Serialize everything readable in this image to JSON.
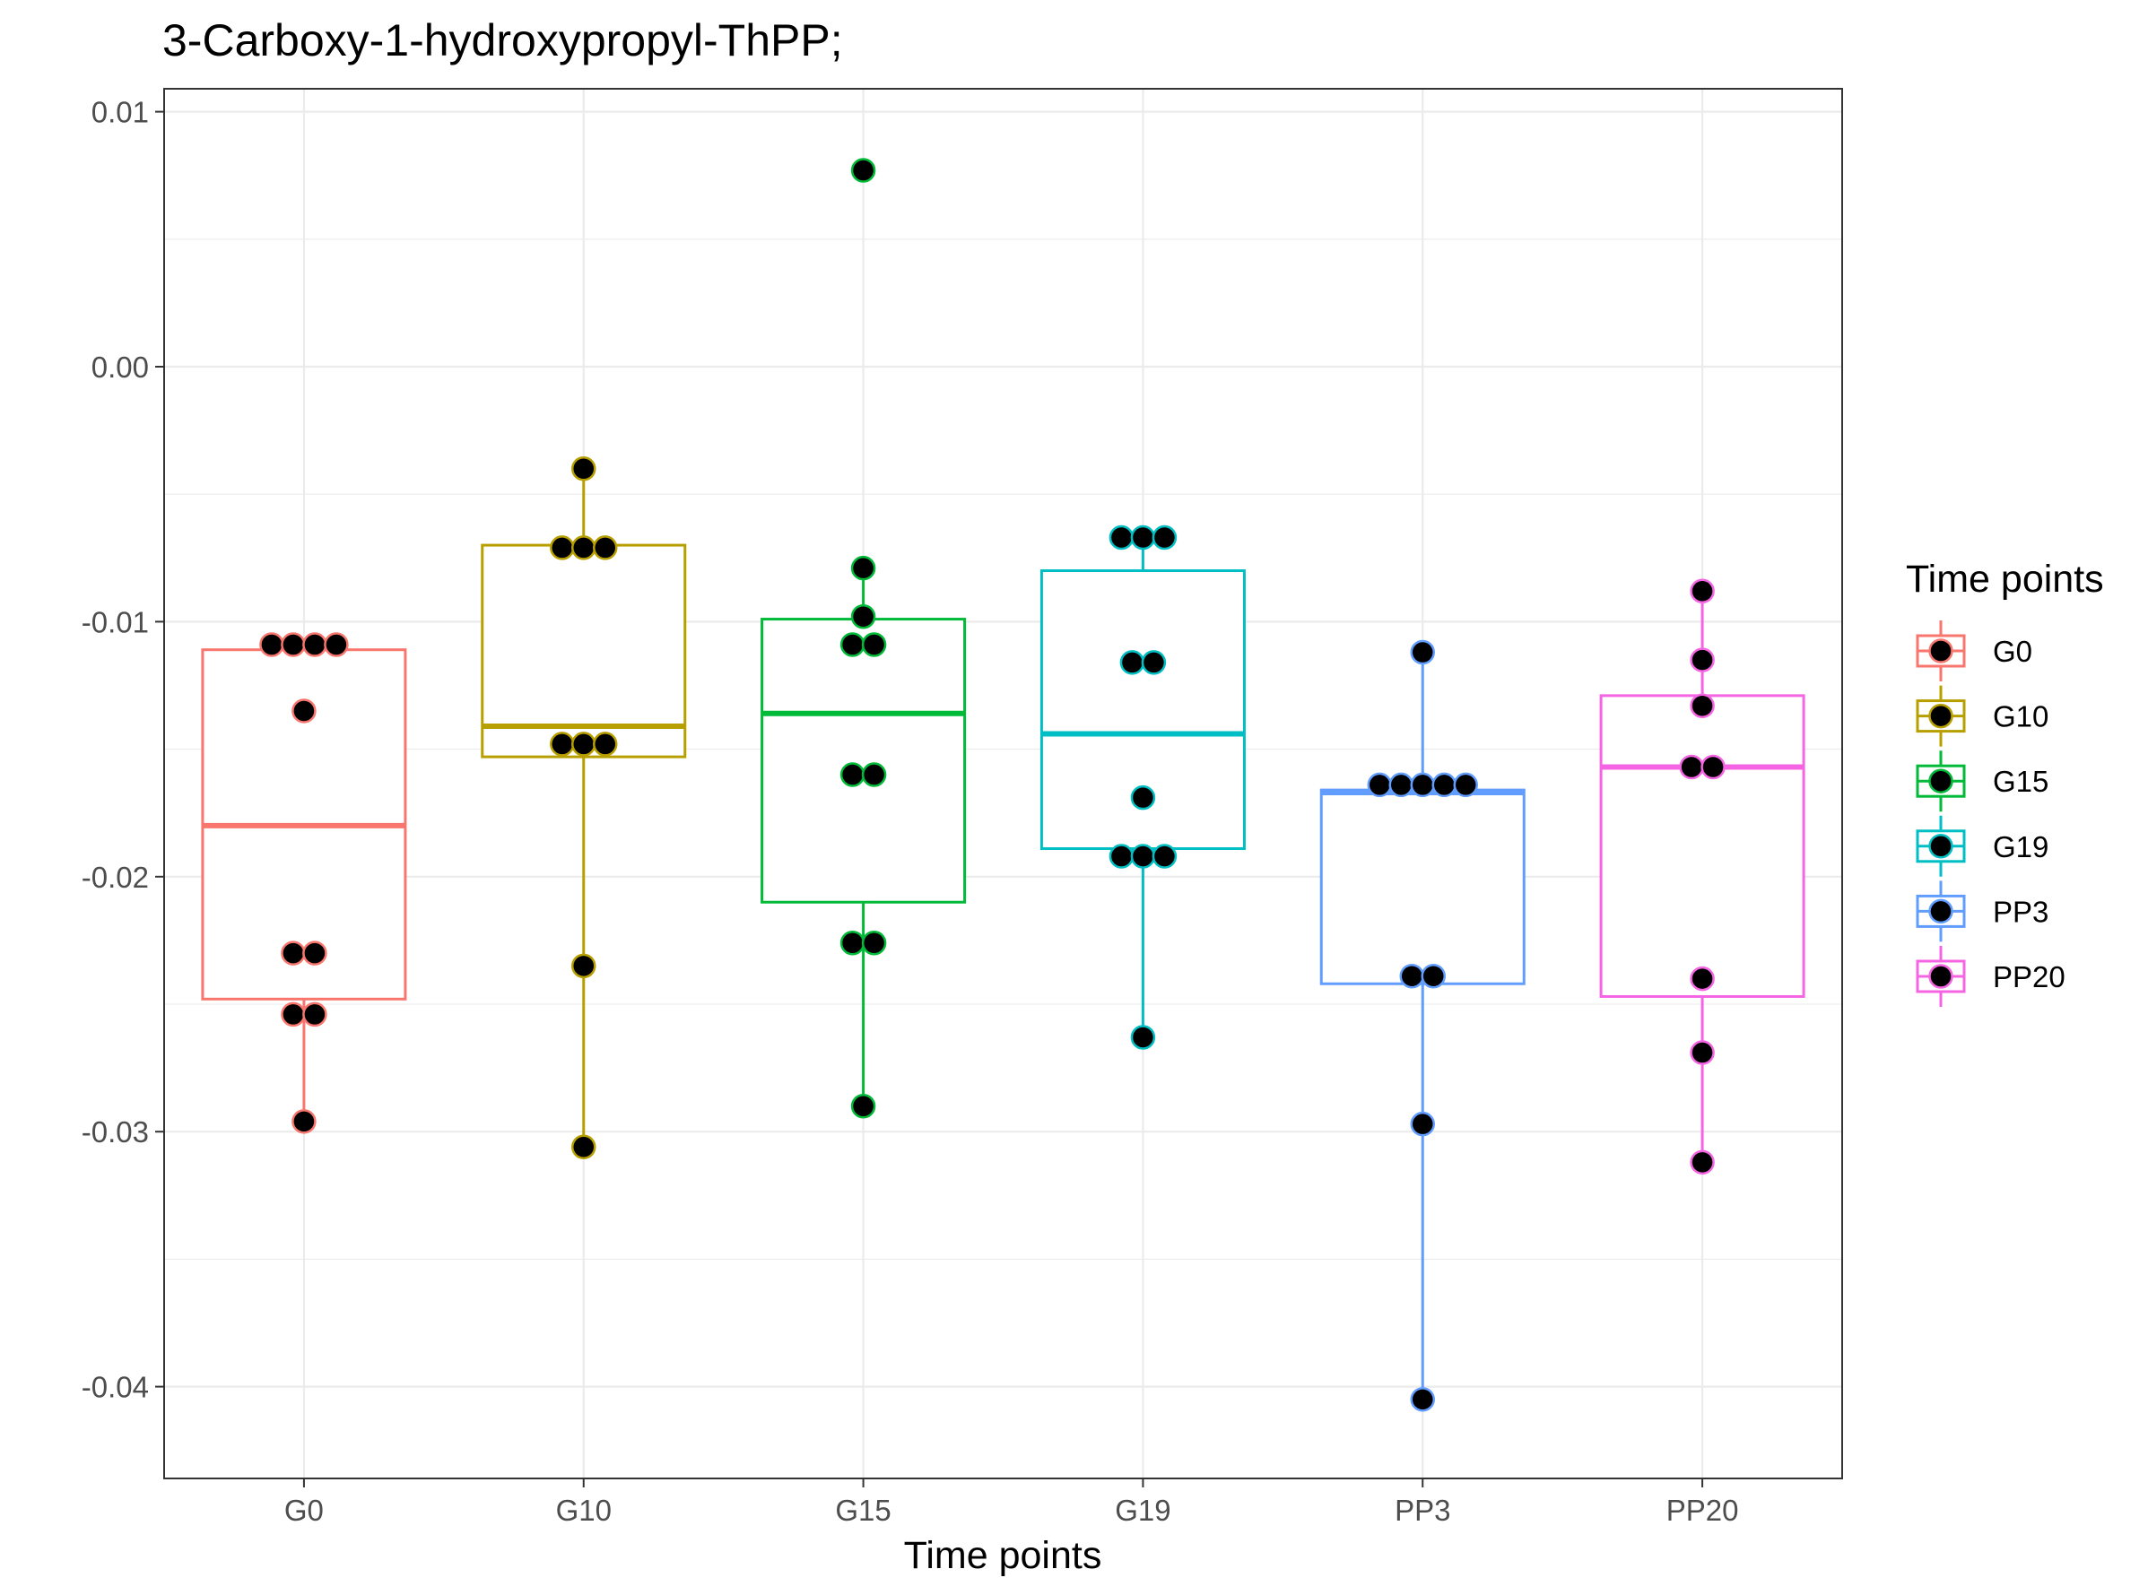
{
  "chart_data": {
    "type": "box",
    "title": "3-Carboxy-1-hydroxypropyl-ThPP;",
    "xlabel": "Time points",
    "ylabel": "",
    "ylim": [
      -0.0436,
      0.0109
    ],
    "y_ticks": [
      0.01,
      0.0,
      -0.01,
      -0.02,
      -0.03,
      -0.04
    ],
    "y_tick_labels": [
      "0.01",
      "0.00",
      "-0.01",
      "-0.02",
      "-0.03",
      "-0.04"
    ],
    "categories": [
      "G0",
      "G10",
      "G15",
      "G19",
      "PP3",
      "PP20"
    ],
    "grid": true,
    "legend": {
      "title": "Time points",
      "position": "right"
    },
    "series": [
      {
        "name": "G0",
        "color": "#F8766D",
        "box": {
          "whisker_low": -0.0296,
          "q1": -0.0248,
          "median": -0.018,
          "q3": -0.0111,
          "whisker_high": -0.0109
        },
        "points": [
          -0.0109,
          -0.0109,
          -0.0109,
          -0.0109,
          -0.0135,
          -0.023,
          -0.023,
          -0.0254,
          -0.0254,
          -0.0296
        ]
      },
      {
        "name": "G10",
        "color": "#B79F00",
        "box": {
          "whisker_low": -0.0306,
          "q1": -0.0153,
          "median": -0.0141,
          "q3": -0.007,
          "whisker_high": -0.004
        },
        "points": [
          -0.004,
          -0.0071,
          -0.0071,
          -0.0071,
          -0.0148,
          -0.0148,
          -0.0148,
          -0.0235,
          -0.0306
        ]
      },
      {
        "name": "G15",
        "color": "#00BA38",
        "box": {
          "whisker_low": -0.029,
          "q1": -0.021,
          "median": -0.0136,
          "q3": -0.0099,
          "whisker_high": -0.0079
        },
        "points": [
          0.0077,
          -0.0079,
          -0.0098,
          -0.0109,
          -0.0109,
          -0.016,
          -0.016,
          -0.0226,
          -0.0226,
          -0.029
        ]
      },
      {
        "name": "G19",
        "color": "#00BFC4",
        "box": {
          "whisker_low": -0.0263,
          "q1": -0.0189,
          "median": -0.0144,
          "q3": -0.008,
          "whisker_high": -0.0067
        },
        "points": [
          -0.0067,
          -0.0067,
          -0.0067,
          -0.0116,
          -0.0116,
          -0.0169,
          -0.0192,
          -0.0192,
          -0.0192,
          -0.0263
        ]
      },
      {
        "name": "PP3",
        "color": "#619CFF",
        "box": {
          "whisker_low": -0.0405,
          "q1": -0.0242,
          "median": -0.0167,
          "q3": -0.0166,
          "whisker_high": -0.0112
        },
        "points": [
          -0.0112,
          -0.0164,
          -0.0164,
          -0.0164,
          -0.0164,
          -0.0164,
          -0.0239,
          -0.0239,
          -0.0297,
          -0.0405
        ]
      },
      {
        "name": "PP20",
        "color": "#F564E3",
        "box": {
          "whisker_low": -0.0312,
          "q1": -0.0247,
          "median": -0.0157,
          "q3": -0.0129,
          "whisker_high": -0.0088
        },
        "points": [
          -0.0088,
          -0.0115,
          -0.0133,
          -0.0157,
          -0.0157,
          -0.024,
          -0.0269,
          -0.0312
        ]
      }
    ]
  }
}
